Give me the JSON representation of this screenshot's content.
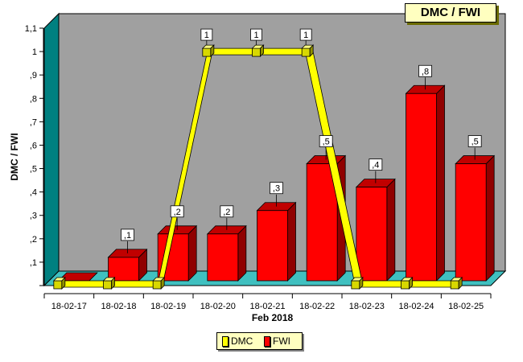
{
  "chart_data": {
    "type": "bar",
    "title": "DMC / FWI",
    "xlabel": "Feb 2018",
    "ylabel": "DMC / FWI",
    "categories": [
      "18-02-17",
      "18-02-18",
      "18-02-19",
      "18-02-20",
      "18-02-21",
      "18-02-22",
      "18-02-23",
      "18-02-24",
      "18-02-25"
    ],
    "y_ticks": [
      ",1",
      ",2",
      ",3",
      ",4",
      ",5",
      ",6",
      ",7",
      ",8",
      ",9",
      "1",
      "1,1"
    ],
    "ylim": [
      0,
      1.1
    ],
    "grid": false,
    "legend_position": "bottom",
    "series": [
      {
        "name": "DMC",
        "type": "line",
        "color": "#ffff00",
        "values": [
          0,
          0,
          0,
          1,
          1,
          1,
          0,
          0,
          0
        ],
        "labels": [
          "",
          "",
          "",
          "1",
          "1",
          "1",
          "",
          "",
          ""
        ]
      },
      {
        "name": "FWI",
        "type": "bar",
        "color": "#ff0000",
        "values": [
          0,
          0.1,
          0.2,
          0.2,
          0.3,
          0.5,
          0.4,
          0.8,
          0.5
        ],
        "labels": [
          "",
          ",1",
          ",2",
          ",2",
          ",3",
          ",5",
          ",4",
          ",8",
          ",5"
        ]
      }
    ],
    "colors": {
      "wall": "#a0a0a0",
      "side_wall": "#008080",
      "floor": "#40c0c0"
    }
  }
}
